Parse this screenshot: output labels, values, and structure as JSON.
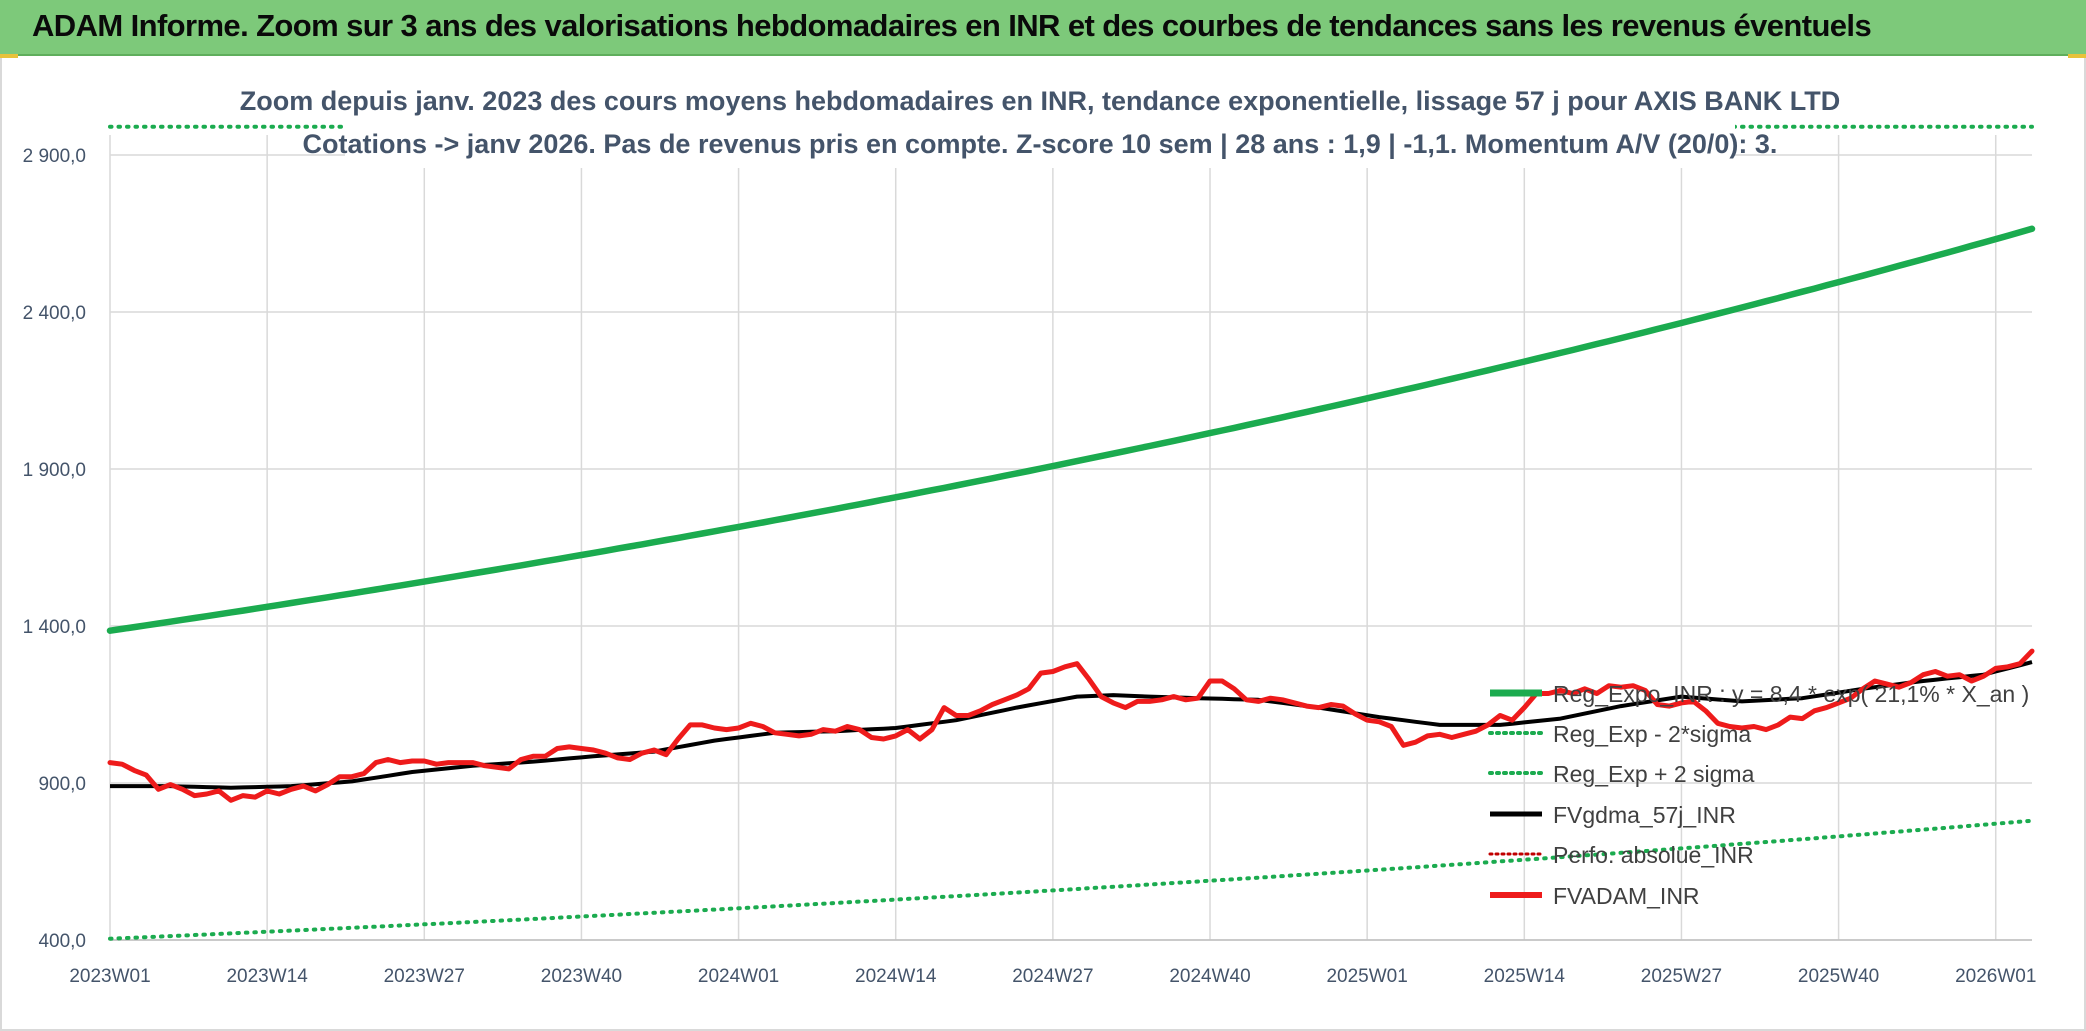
{
  "header": {
    "title": "ADAM Informe. Zoom sur 3 ans des valorisations hebdomadaires en INR et des courbes de tendances sans les revenus éventuels"
  },
  "colors": {
    "banner": "#7dc97a",
    "trend": "#1bab4f",
    "smooth": "#000000",
    "price": "#ee1b1b",
    "perf": "#c00000",
    "grid": "#d9d9d9"
  },
  "chart_data": {
    "type": "line",
    "title_lines": [
      "Zoom depuis janv. 2023 des cours moyens hebdomadaires en INR, tendance exponentielle, lissage 57 j pour AXIS BANK LTD",
      "Cotations -> janv 2026. Pas de revenus pris en compte. Z-score 10 sem | 28 ans : 1,9 | -1,1. Momentum A/V (20/0): 3."
    ],
    "ylim": [
      400,
      2900
    ],
    "yticks": [
      {
        "value": 400,
        "label": "400,0"
      },
      {
        "value": 900,
        "label": "900,0"
      },
      {
        "value": 1400,
        "label": "1 400,0"
      },
      {
        "value": 1900,
        "label": "1 900,0"
      },
      {
        "value": 2400,
        "label": "2 400,0"
      },
      {
        "value": 2900,
        "label": "2 900,0"
      }
    ],
    "x_count": 160,
    "x_labels": [
      {
        "index": 0,
        "label": "2023W01"
      },
      {
        "index": 13,
        "label": "2023W14"
      },
      {
        "index": 26,
        "label": "2023W27"
      },
      {
        "index": 39,
        "label": "2023W40"
      },
      {
        "index": 52,
        "label": "2024W01"
      },
      {
        "index": 65,
        "label": "2024W14"
      },
      {
        "index": 78,
        "label": "2024W27"
      },
      {
        "index": 91,
        "label": "2024W40"
      },
      {
        "index": 104,
        "label": "2025W01"
      },
      {
        "index": 117,
        "label": "2025W14"
      },
      {
        "index": 130,
        "label": "2025W27"
      },
      {
        "index": 143,
        "label": "2025W40"
      },
      {
        "index": 156,
        "label": "2026W01"
      }
    ],
    "series": [
      {
        "name": "Reg_Expo_INR : y = 8,4 * exp( 21,1% *  X_an )",
        "style": "solid-green-thick",
        "points": [
          [
            0,
            1385
          ],
          [
            159,
            2665
          ]
        ]
      },
      {
        "name": "Reg_Exp - 2*sigma",
        "style": "dotted-green",
        "points": [
          [
            0,
            404
          ],
          [
            159,
            780
          ]
        ]
      },
      {
        "name": "Reg_Exp + 2 sigma",
        "style": "dotted-green",
        "points": [
          [
            0,
            2990
          ],
          [
            159,
            2990
          ]
        ]
      },
      {
        "name": "FVgdma_57j_INR",
        "style": "solid-black",
        "points": [
          [
            0,
            890
          ],
          [
            5,
            890
          ],
          [
            10,
            885
          ],
          [
            15,
            890
          ],
          [
            20,
            905
          ],
          [
            25,
            935
          ],
          [
            30,
            955
          ],
          [
            35,
            968
          ],
          [
            40,
            985
          ],
          [
            45,
            1000
          ],
          [
            50,
            1035
          ],
          [
            55,
            1060
          ],
          [
            60,
            1065
          ],
          [
            65,
            1075
          ],
          [
            70,
            1100
          ],
          [
            75,
            1140
          ],
          [
            80,
            1175
          ],
          [
            83,
            1180
          ],
          [
            86,
            1175
          ],
          [
            90,
            1170
          ],
          [
            95,
            1165
          ],
          [
            100,
            1140
          ],
          [
            105,
            1110
          ],
          [
            110,
            1085
          ],
          [
            115,
            1085
          ],
          [
            120,
            1105
          ],
          [
            125,
            1145
          ],
          [
            130,
            1175
          ],
          [
            135,
            1160
          ],
          [
            140,
            1170
          ],
          [
            145,
            1200
          ],
          [
            150,
            1225
          ],
          [
            155,
            1245
          ],
          [
            159,
            1285
          ]
        ]
      },
      {
        "name": "Perfo. absolue_INR",
        "style": "dotted-darkred",
        "points": []
      },
      {
        "name": "FVADAM_INR",
        "style": "solid-red",
        "points": [
          [
            0,
            965
          ],
          [
            1,
            960
          ],
          [
            2,
            940
          ],
          [
            3,
            925
          ],
          [
            4,
            880
          ],
          [
            5,
            895
          ],
          [
            6,
            880
          ],
          [
            7,
            860
          ],
          [
            8,
            865
          ],
          [
            9,
            875
          ],
          [
            10,
            845
          ],
          [
            11,
            860
          ],
          [
            12,
            855
          ],
          [
            13,
            875
          ],
          [
            14,
            865
          ],
          [
            15,
            880
          ],
          [
            16,
            890
          ],
          [
            17,
            875
          ],
          [
            18,
            895
          ],
          [
            19,
            920
          ],
          [
            20,
            920
          ],
          [
            21,
            930
          ],
          [
            22,
            965
          ],
          [
            23,
            975
          ],
          [
            24,
            965
          ],
          [
            25,
            970
          ],
          [
            26,
            970
          ],
          [
            27,
            960
          ],
          [
            28,
            965
          ],
          [
            29,
            965
          ],
          [
            30,
            965
          ],
          [
            31,
            955
          ],
          [
            32,
            950
          ],
          [
            33,
            945
          ],
          [
            34,
            975
          ],
          [
            35,
            985
          ],
          [
            36,
            985
          ],
          [
            37,
            1010
          ],
          [
            38,
            1015
          ],
          [
            39,
            1010
          ],
          [
            40,
            1005
          ],
          [
            41,
            995
          ],
          [
            42,
            980
          ],
          [
            43,
            975
          ],
          [
            44,
            995
          ],
          [
            45,
            1005
          ],
          [
            46,
            990
          ],
          [
            47,
            1040
          ],
          [
            48,
            1085
          ],
          [
            49,
            1085
          ],
          [
            50,
            1075
          ],
          [
            51,
            1070
          ],
          [
            52,
            1075
          ],
          [
            53,
            1090
          ],
          [
            54,
            1080
          ],
          [
            55,
            1060
          ],
          [
            56,
            1055
          ],
          [
            57,
            1050
          ],
          [
            58,
            1055
          ],
          [
            59,
            1070
          ],
          [
            60,
            1065
          ],
          [
            61,
            1080
          ],
          [
            62,
            1070
          ],
          [
            63,
            1045
          ],
          [
            64,
            1040
          ],
          [
            65,
            1050
          ],
          [
            66,
            1070
          ],
          [
            67,
            1040
          ],
          [
            68,
            1070
          ],
          [
            69,
            1140
          ],
          [
            70,
            1115
          ],
          [
            71,
            1115
          ],
          [
            72,
            1130
          ],
          [
            73,
            1150
          ],
          [
            74,
            1165
          ],
          [
            75,
            1180
          ],
          [
            76,
            1200
          ],
          [
            77,
            1250
          ],
          [
            78,
            1255
          ],
          [
            79,
            1270
          ],
          [
            80,
            1280
          ],
          [
            81,
            1230
          ],
          [
            82,
            1175
          ],
          [
            83,
            1155
          ],
          [
            84,
            1140
          ],
          [
            85,
            1160
          ],
          [
            86,
            1160
          ],
          [
            87,
            1165
          ],
          [
            88,
            1175
          ],
          [
            89,
            1165
          ],
          [
            90,
            1170
          ],
          [
            91,
            1225
          ],
          [
            92,
            1225
          ],
          [
            93,
            1200
          ],
          [
            94,
            1165
          ],
          [
            95,
            1160
          ],
          [
            96,
            1170
          ],
          [
            97,
            1165
          ],
          [
            98,
            1155
          ],
          [
            99,
            1145
          ],
          [
            100,
            1140
          ],
          [
            101,
            1150
          ],
          [
            102,
            1145
          ],
          [
            103,
            1120
          ],
          [
            104,
            1100
          ],
          [
            105,
            1095
          ],
          [
            106,
            1080
          ],
          [
            107,
            1020
          ],
          [
            108,
            1030
          ],
          [
            109,
            1050
          ],
          [
            110,
            1055
          ],
          [
            111,
            1045
          ],
          [
            112,
            1055
          ],
          [
            113,
            1065
          ],
          [
            114,
            1085
          ],
          [
            115,
            1115
          ],
          [
            116,
            1100
          ],
          [
            117,
            1140
          ],
          [
            118,
            1185
          ],
          [
            119,
            1185
          ],
          [
            120,
            1195
          ],
          [
            121,
            1185
          ],
          [
            122,
            1200
          ],
          [
            123,
            1185
          ],
          [
            124,
            1210
          ],
          [
            125,
            1205
          ],
          [
            126,
            1210
          ],
          [
            127,
            1195
          ],
          [
            128,
            1150
          ],
          [
            129,
            1145
          ],
          [
            130,
            1155
          ],
          [
            131,
            1160
          ],
          [
            132,
            1130
          ],
          [
            133,
            1090
          ],
          [
            134,
            1080
          ],
          [
            135,
            1075
          ],
          [
            136,
            1080
          ],
          [
            137,
            1070
          ],
          [
            138,
            1085
          ],
          [
            139,
            1110
          ],
          [
            140,
            1105
          ],
          [
            141,
            1130
          ],
          [
            142,
            1140
          ],
          [
            143,
            1155
          ],
          [
            144,
            1170
          ],
          [
            145,
            1200
          ],
          [
            146,
            1225
          ],
          [
            147,
            1215
          ],
          [
            148,
            1205
          ],
          [
            149,
            1220
          ],
          [
            150,
            1245
          ],
          [
            151,
            1255
          ],
          [
            152,
            1240
          ],
          [
            153,
            1245
          ],
          [
            154,
            1225
          ],
          [
            155,
            1240
          ],
          [
            156,
            1265
          ],
          [
            157,
            1270
          ],
          [
            158,
            1280
          ],
          [
            159,
            1320
          ]
        ]
      }
    ]
  }
}
